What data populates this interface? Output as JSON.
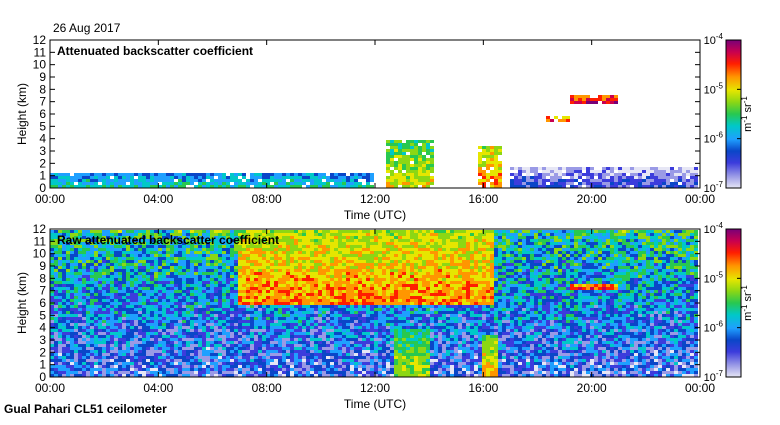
{
  "date_label": "26 Aug 2017",
  "footer_label": "Gual Pahari CL51 ceilometer",
  "colors": {
    "scale": [
      "#e6e6f5",
      "#9a9ae6",
      "#3c3cdc",
      "#0a46c8",
      "#1fa0ff",
      "#00c8c8",
      "#28c850",
      "#8cd714",
      "#e6e600",
      "#ff9600",
      "#ff1e00",
      "#c80050",
      "#780078"
    ]
  },
  "chart_data": [
    {
      "type": "heatmap",
      "title": "Attenuated backscatter coefficient",
      "xlabel": "Time (UTC)",
      "ylabel": "Height (km)",
      "x_ticks": [
        "00:00",
        "04:00",
        "08:00",
        "12:00",
        "16:00",
        "20:00",
        "00:00"
      ],
      "y_ticks": [
        "0",
        "1",
        "2",
        "3",
        "4",
        "5",
        "6",
        "7",
        "8",
        "9",
        "10",
        "11",
        "12"
      ],
      "xlim": [
        0,
        24
      ],
      "ylim": [
        0,
        12
      ],
      "colorbar": {
        "scale": "log",
        "range": [
          1e-07,
          0.0001
        ],
        "tick_labels": [
          {
            "base": "10",
            "exp": "-4"
          },
          {
            "base": "10",
            "exp": "-5"
          },
          {
            "base": "10",
            "exp": "-6"
          },
          {
            "base": "10",
            "exp": "-7"
          }
        ],
        "unit": {
          "a": "m",
          "a_exp": "-1",
          "b": "sr",
          "b_exp": "-1"
        }
      },
      "features": [
        {
          "t0": 0.0,
          "t1": 12.0,
          "h0": 0.0,
          "h1": 1.3,
          "level": 0.45
        },
        {
          "t0": 12.5,
          "t1": 14.2,
          "h0": 0.0,
          "h1": 3.8,
          "level": 0.65
        },
        {
          "t0": 15.8,
          "t1": 16.7,
          "h0": 0.0,
          "h1": 3.5,
          "level": 0.75
        },
        {
          "t0": 17.0,
          "t1": 24.0,
          "h0": 0.0,
          "h1": 1.8,
          "level": 0.22
        },
        {
          "t0": 18.3,
          "t1": 19.3,
          "h0": 5.5,
          "h1": 5.9,
          "level": 0.8
        },
        {
          "t0": 19.3,
          "t1": 21.0,
          "h0": 6.9,
          "h1": 7.6,
          "level": 0.9
        }
      ]
    },
    {
      "type": "heatmap",
      "title": "Raw attenuated backscatter coefficient",
      "xlabel": "Time (UTC)",
      "ylabel": "Height (km)",
      "x_ticks": [
        "00:00",
        "04:00",
        "08:00",
        "12:00",
        "16:00",
        "20:00",
        "00:00"
      ],
      "y_ticks": [
        "0",
        "1",
        "2",
        "3",
        "4",
        "5",
        "6",
        "7",
        "8",
        "9",
        "10",
        "11",
        "12"
      ],
      "xlim": [
        0,
        24
      ],
      "ylim": [
        0,
        12
      ],
      "colorbar": {
        "scale": "log",
        "range": [
          1e-07,
          0.0001
        ],
        "tick_labels": [
          {
            "base": "10",
            "exp": "-4"
          },
          {
            "base": "10",
            "exp": "-5"
          },
          {
            "base": "10",
            "exp": "-6"
          },
          {
            "base": "10",
            "exp": "-7"
          }
        ],
        "unit": {
          "a": "m",
          "a_exp": "-1",
          "b": "sr",
          "b_exp": "-1"
        }
      },
      "features": [
        {
          "t0": 0.0,
          "t1": 24.0,
          "h0": 0.0,
          "h1": 12.0,
          "level": 0.4
        },
        {
          "t0": 7.0,
          "t1": 16.5,
          "h0": 6.0,
          "h1": 12.0,
          "level": 0.75
        },
        {
          "t0": 12.8,
          "t1": 14.0,
          "h0": 0.0,
          "h1": 4.0,
          "level": 0.6
        },
        {
          "t0": 16.0,
          "t1": 16.6,
          "h0": 0.0,
          "h1": 3.5,
          "level": 0.7
        },
        {
          "t0": 19.3,
          "t1": 21.0,
          "h0": 7.0,
          "h1": 7.6,
          "level": 0.85
        }
      ]
    }
  ]
}
